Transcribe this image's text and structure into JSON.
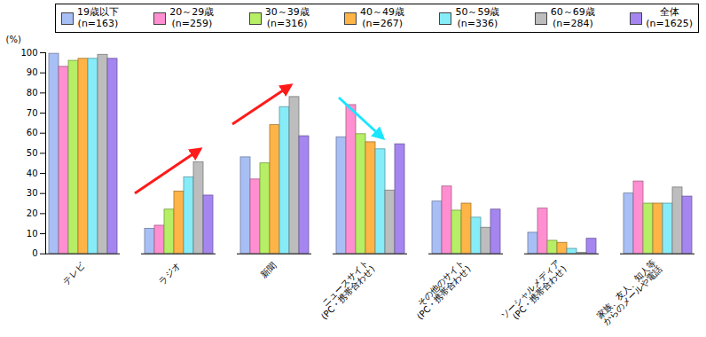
{
  "chart_data": {
    "type": "bar",
    "categories": [
      "テレビ",
      "ラジオ",
      "新聞",
      "ニュースサイト\n(PC・携帯合わせ)",
      "その他のサイト\n(PC・携帯合わせ)",
      "ソーシャルメディア\n(PC・携帯合わせ)",
      "家族、友人、知人等\nからのメールや電話"
    ],
    "series": [
      {
        "name": "19歳以下\n(n=163)",
        "color": "#a8bff5",
        "values": [
          99.5,
          12.5,
          48,
          58,
          26,
          10.5,
          30
        ]
      },
      {
        "name": "20～29歳\n(n=259)",
        "color": "#ff8fd0",
        "values": [
          93,
          14,
          37,
          74,
          33.5,
          22.5,
          36
        ]
      },
      {
        "name": "30～39歳\n(n=316)",
        "color": "#b6ee66",
        "values": [
          96,
          22,
          45,
          59.5,
          21.5,
          6.5,
          25
        ]
      },
      {
        "name": "40～49歳\n(n=267)",
        "color": "#ffb447",
        "values": [
          97,
          31,
          64,
          55.5,
          25,
          5.5,
          25
        ]
      },
      {
        "name": "50～59歳\n(n=336)",
        "color": "#86ecf8",
        "values": [
          97,
          38,
          73,
          52,
          18,
          2.5,
          25
        ]
      },
      {
        "name": "60～69歳\n(n=284)",
        "color": "#bdbdbd",
        "values": [
          99,
          45.5,
          78,
          31.5,
          13,
          0.5,
          33
        ]
      },
      {
        "name": "全体\n(n=1625)",
        "color": "#a586f0",
        "values": [
          97,
          29,
          58.5,
          54.5,
          22,
          7.5,
          28.5
        ]
      }
    ],
    "y_label": "(%)",
    "ylim": [
      0,
      100
    ],
    "yticks": [
      0,
      10,
      20,
      30,
      40,
      50,
      60,
      70,
      80,
      90,
      100
    ],
    "grid": false,
    "legend": "top"
  }
}
